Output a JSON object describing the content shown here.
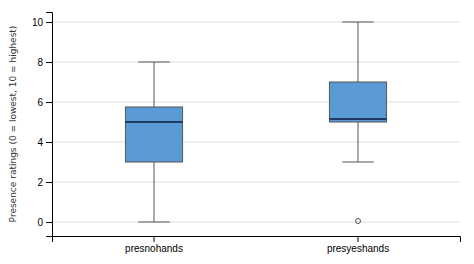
{
  "chart_data": {
    "type": "box",
    "categories": [
      "presnohands",
      "presyeshands"
    ],
    "boxes": [
      {
        "q1": 3.0,
        "median": 5.0,
        "q3": 5.75,
        "whisker_low": 0.0,
        "whisker_high": 8.0,
        "outliers": []
      },
      {
        "q1": 5.0,
        "median": 5.15,
        "q3": 7.0,
        "whisker_low": 3.0,
        "whisker_high": 10.0,
        "outliers": [
          0.05
        ]
      }
    ],
    "color": "#5B9BD5",
    "ylabel": "Presence ratings (0 = lowest, 10 = highest)",
    "ylim": [
      -0.7,
      10.5
    ],
    "yticks": [
      0,
      2,
      4,
      6,
      8,
      10
    ],
    "grid": true
  }
}
